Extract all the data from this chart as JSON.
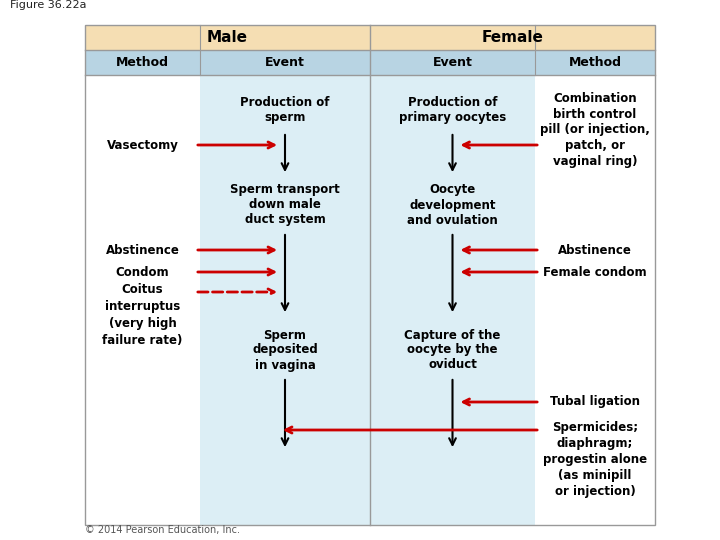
{
  "figure_label": "Figure 36.22a",
  "title_male": "Male",
  "title_female": "Female",
  "header_method": "Method",
  "header_event": "Event",
  "tan_color": "#f5deb3",
  "blue_header_color": "#b8d4e3",
  "center_bg_color": "#dceef5",
  "red": "#cc0000",
  "black": "#000000",
  "copyright": "© 2014 Pearson Education, Inc.",
  "male_event_texts": [
    "Production of\nsperm",
    "Sperm transport\ndown male\nduct system",
    "Sperm\ndeposited\nin vagina"
  ],
  "female_event_texts": [
    "Production of\nprimary oocytes",
    "Oocyte\ndevelopment\nand ovulation",
    "Capture of the\noocyte by the\noviduct"
  ],
  "male_method_labels": [
    "Vasectomy",
    "Abstinence",
    "Condom",
    "Coitus\ninterruptus\n(very high\nfailure rate)"
  ],
  "female_method_labels": [
    "Combination\nbirth control\npill (or injection,\npatch, or\nvaginal ring)",
    "Abstinence",
    "Female condom",
    "Tubal ligation",
    "Spermicides;\ndiaphragm;\nprogestin alone\n(as minipill\nor injection)"
  ]
}
